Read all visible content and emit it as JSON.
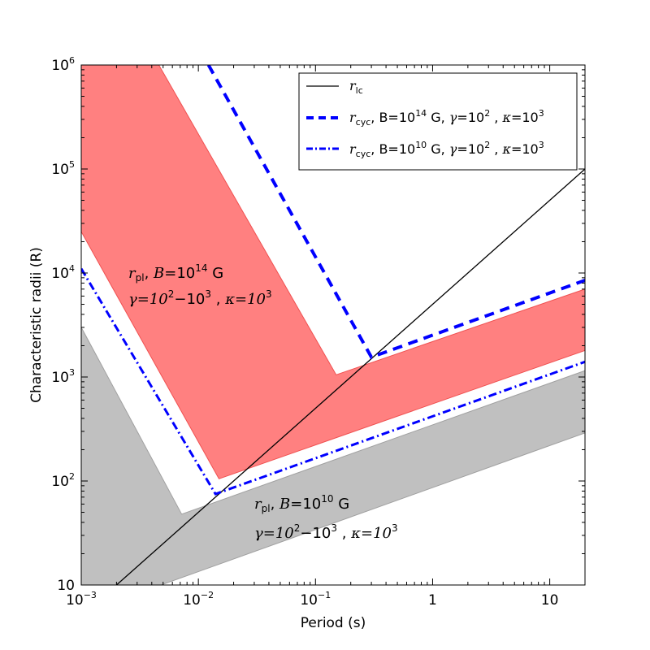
{
  "chart_data": {
    "type": "line",
    "xscale": "log",
    "yscale": "log",
    "xlim": [
      0.001,
      20
    ],
    "ylim": [
      10,
      1000000
    ],
    "xlabel": "Period (s)",
    "ylabel": "Characteristic radii (R)",
    "x_ticks": [
      {
        "value": 0.001,
        "base": "10",
        "exp": "−3"
      },
      {
        "value": 0.01,
        "base": "10",
        "exp": "−2"
      },
      {
        "value": 0.1,
        "base": "10",
        "exp": "−1"
      },
      {
        "value": 1,
        "base": "1",
        "exp": ""
      },
      {
        "value": 10,
        "base": "10",
        "exp": ""
      }
    ],
    "y_ticks": [
      {
        "value": 10,
        "base": "10",
        "exp": ""
      },
      {
        "value": 100,
        "base": "10",
        "exp": "2"
      },
      {
        "value": 1000,
        "base": "10",
        "exp": "3"
      },
      {
        "value": 10000,
        "base": "10",
        "exp": "4"
      },
      {
        "value": 100000,
        "base": "10",
        "exp": "5"
      },
      {
        "value": 1000000,
        "base": "10",
        "exp": "6"
      }
    ],
    "bands": [
      {
        "id": "rpl-b14",
        "fill": "#ff8080",
        "edge": "#f05050",
        "upper": [
          [
            0.001,
            25000
          ],
          [
            0.0046,
            1000000
          ]
        ],
        "lower": [
          [
            0.015,
            105
          ],
          [
            0.15,
            1050
          ],
          [
            20,
            1800
          ]
        ],
        "polygon": [
          [
            0.001,
            1000000
          ],
          [
            0.0046,
            1000000
          ],
          [
            0.15,
            1050
          ],
          [
            20,
            7000
          ],
          [
            20,
            1800
          ],
          [
            0.015,
            105
          ],
          [
            0.001,
            25000
          ]
        ],
        "label": {
          "symbol": "r",
          "sub": "pl",
          "b_text": "B",
          "b_exp": "14",
          "unit": "G",
          "gamma_text": "γ=10",
          "gamma_exp1": "2",
          "gamma_mid": "−10",
          "gamma_exp2": "3",
          "kappa_text": "κ=10",
          "kappa_exp": "3"
        }
      },
      {
        "id": "rpl-b10",
        "fill": "#c0c0c0",
        "edge": "#a0a0a0",
        "polygon": [
          [
            0.001,
            3000
          ],
          [
            0.0072,
            48
          ],
          [
            20,
            1150
          ],
          [
            20,
            290
          ],
          [
            0.0048,
            10
          ],
          [
            0.001,
            10
          ]
        ],
        "label": {
          "symbol": "r",
          "sub": "pl",
          "b_text": "B",
          "b_exp": "10",
          "unit": "G",
          "gamma_text": "γ=10",
          "gamma_exp1": "2",
          "gamma_mid": "−10",
          "gamma_exp2": "3",
          "kappa_text": "κ=10",
          "kappa_exp": "3"
        }
      }
    ],
    "series": [
      {
        "name": "r_lc",
        "color": "#000000",
        "width": 1.3,
        "dash": "",
        "points": [
          [
            0.002,
            10
          ],
          [
            20,
            100000
          ]
        ]
      },
      {
        "name": "r_cyc B14",
        "color": "#0000ff",
        "width": 4,
        "dash": "12,8",
        "points": [
          [
            0.0122,
            1000000
          ],
          [
            0.3,
            1550
          ],
          [
            20,
            8500
          ]
        ]
      },
      {
        "name": "r_cyc B10",
        "color": "#0000ff",
        "width": 3,
        "dash": "10,4,2,4",
        "points": [
          [
            0.001,
            11000
          ],
          [
            0.014,
            75
          ],
          [
            20,
            1400
          ]
        ]
      }
    ],
    "legend": {
      "position": "top-right",
      "entries": [
        {
          "symbol": "r",
          "sub": "lc",
          "b_text": "",
          "b_exp": "",
          "unit": "",
          "gamma_exp": "",
          "kappa_exp": ""
        },
        {
          "symbol": "r",
          "sub": "cyc",
          "b_text": "B=",
          "b_exp": "14",
          "unit": "G,",
          "gamma_exp": "2",
          "kappa_exp": "3"
        },
        {
          "symbol": "r",
          "sub": "cyc",
          "b_text": "B=",
          "b_exp": "10",
          "unit": "G,",
          "gamma_exp": "2",
          "kappa_exp": "3"
        }
      ]
    }
  }
}
